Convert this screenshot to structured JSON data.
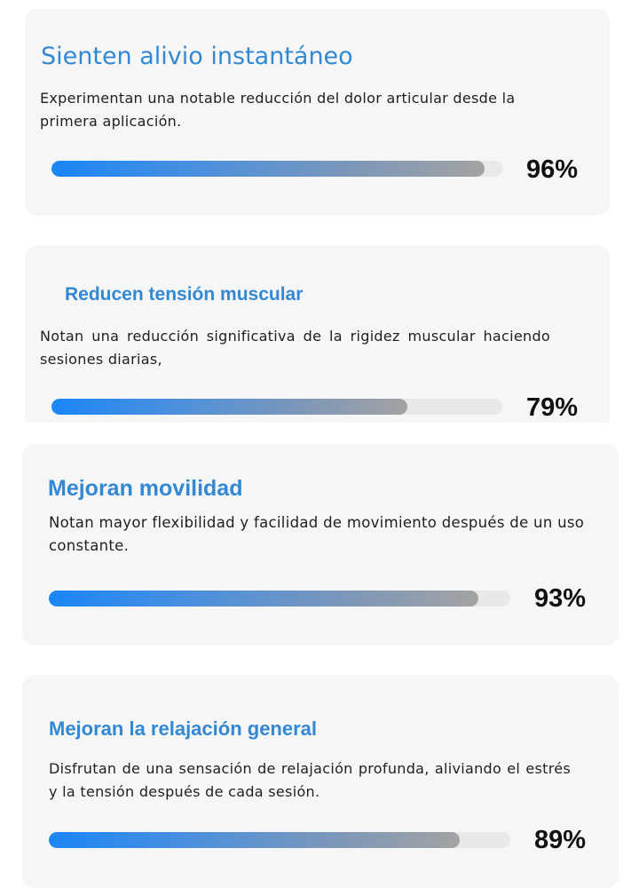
{
  "cards": [
    {
      "title": "Sienten alivio instantáneo",
      "description": "Experimentan una notable reducción del dolor articular desde la primera aplicación.",
      "percent_label": "96%",
      "progress": 0.96
    },
    {
      "title": "Reducen tensión muscular",
      "description": "Notan una reducción significativa de la rigidez muscular haciendo sesiones diarias,",
      "percent_label": "79%",
      "progress": 0.79
    },
    {
      "title": "Mejoran movilidad",
      "description": "Notan mayor flexibilidad y facilidad de movimiento después de un uso constante.",
      "percent_label": "93%",
      "progress": 0.93
    },
    {
      "title": "Mejoran la relajación general",
      "description": "Disfrutan de una sensación de relajación profunda, aliviando el estrés y la tensión después de cada sesión.",
      "percent_label": "89%",
      "progress": 0.89
    }
  ],
  "colors": {
    "title": "#3388d4",
    "card_background": "#f6f6f6",
    "track": "#e9e9e9",
    "bar_start": "#1a86f5",
    "bar_end": "#a3a3a3",
    "percent_text": "#111111"
  }
}
